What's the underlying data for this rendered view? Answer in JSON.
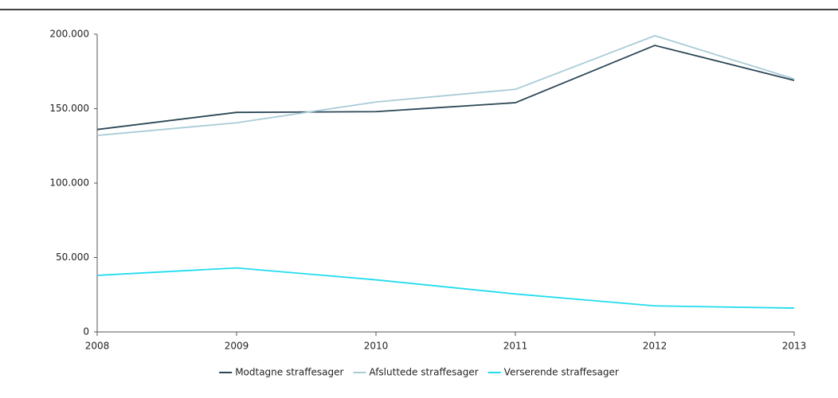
{
  "chart_data": {
    "type": "line",
    "categories": [
      "2008",
      "2009",
      "2010",
      "2011",
      "2012",
      "2013"
    ],
    "series": [
      {
        "name": "Modtagne straffesager",
        "color": "#2b4656",
        "values": [
          136000,
          147500,
          148000,
          154000,
          192500,
          169000
        ]
      },
      {
        "name": "Afsluttede straffesager",
        "color": "#a9ccd7",
        "values": [
          132000,
          140500,
          154500,
          163000,
          199000,
          170000
        ]
      },
      {
        "name": "Verserende straffesager",
        "color": "#22dcef",
        "values": [
          38000,
          43000,
          35000,
          25500,
          17500,
          16000
        ]
      }
    ],
    "ylim": [
      0,
      200000
    ],
    "yticks": [
      0,
      {
        "value": 50000,
        "label": "50.000"
      },
      {
        "value": 100000,
        "label": "100.000"
      },
      {
        "value": 150000,
        "label": "150.000"
      },
      {
        "value": 200000,
        "label": "200.000"
      }
    ],
    "grid": false,
    "legend": "bottom"
  }
}
